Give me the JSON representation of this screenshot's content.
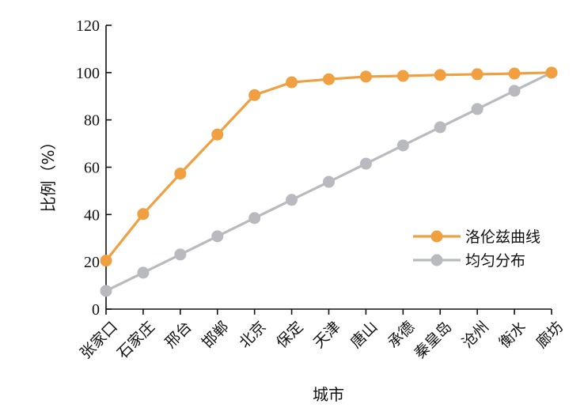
{
  "chart_data": {
    "type": "line",
    "title": "",
    "xlabel": "城市",
    "ylabel": "比例（%）",
    "ylim": [
      0,
      120
    ],
    "yticks": [
      0,
      20,
      40,
      60,
      80,
      100,
      120
    ],
    "grid": false,
    "legend_position": "right",
    "categories": [
      "张家口",
      "石家庄",
      "邢台",
      "邯郸",
      "北京",
      "保定",
      "天津",
      "唐山",
      "承德",
      "秦皇岛",
      "沧州",
      "衡水",
      "廊坊"
    ],
    "series": [
      {
        "name": "洛伦兹曲线",
        "color": "#f0a040",
        "values": [
          20.5,
          40.2,
          57.3,
          73.8,
          90.5,
          95.9,
          97.2,
          98.3,
          98.6,
          99.0,
          99.3,
          99.6,
          100
        ]
      },
      {
        "name": "均匀分布",
        "color": "#b8bac0",
        "values": [
          7.7,
          15.4,
          23.1,
          30.8,
          38.5,
          46.2,
          53.8,
          61.5,
          69.2,
          76.9,
          84.6,
          92.3,
          100
        ]
      }
    ]
  }
}
